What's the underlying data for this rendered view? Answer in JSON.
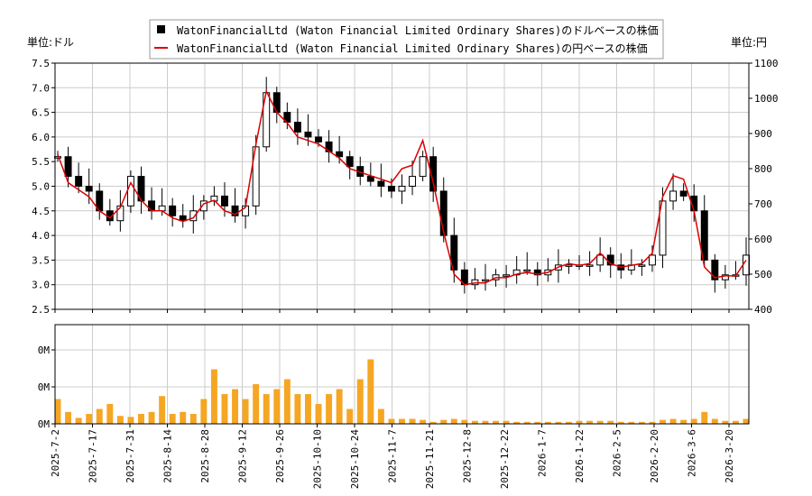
{
  "legend": {
    "usd_label": "WatonFinancialLtd (Waton Financial Limited Ordinary Shares)のドルベースの株価",
    "jpy_label": "WatonFinancialLtd (Waton Financial Limited Ordinary Shares)の円ベースの株価"
  },
  "units": {
    "left": "単位:ドル",
    "right": "単位:円"
  },
  "colors": {
    "candle": "#000000",
    "jpy_line": "#dd0000",
    "volume": "#f5a623",
    "grid": "#cccccc"
  },
  "chart_data": {
    "type": "candlestick+line+bar",
    "x_ticks": [
      "2025-7-2",
      "2025-7-17",
      "2025-7-31",
      "2025-8-14",
      "2025-8-28",
      "2025-9-12",
      "2025-9-26",
      "2025-10-10",
      "2025-10-24",
      "2025-11-7",
      "2025-11-21",
      "2025-12-8",
      "2025-12-22",
      "2026-1-7",
      "2026-1-22",
      "2026-2-5",
      "2026-2-20",
      "2026-3-6",
      "2026-3-20"
    ],
    "usd_axis": {
      "ylim": [
        2.5,
        7.5
      ],
      "ticks": [
        "2.5",
        "3.0",
        "3.5",
        "4.0",
        "4.5",
        "5.0",
        "5.5",
        "6.0",
        "6.5",
        "7.0",
        "7.5"
      ]
    },
    "jpy_axis": {
      "ylim": [
        400,
        1100
      ],
      "ticks": [
        "400",
        "500",
        "600",
        "700",
        "800",
        "900",
        "1000",
        "1100"
      ]
    },
    "volume_axis": {
      "ticks": [
        "0M",
        "0M",
        "0M"
      ]
    },
    "close_usd_weekly": [
      5.6,
      5.2,
      5.0,
      4.9,
      4.5,
      4.3,
      4.6,
      5.2,
      4.7,
      4.5,
      4.6,
      4.4,
      4.3,
      4.5,
      4.7,
      4.8,
      4.6,
      4.4,
      4.6,
      5.8,
      6.9,
      6.5,
      6.3,
      6.1,
      6.0,
      5.9,
      5.7,
      5.6,
      5.4,
      5.2,
      5.1,
      5.0,
      4.9,
      5.0,
      5.2,
      5.6,
      4.9,
      4.0,
      3.3,
      3.0,
      3.1,
      3.1,
      3.2,
      3.2,
      3.3,
      3.3,
      3.2,
      3.3,
      3.4,
      3.4,
      3.4,
      3.4,
      3.6,
      3.4,
      3.3,
      3.4,
      3.4,
      3.6,
      4.7,
      4.9,
      4.8,
      4.5,
      3.5,
      3.1,
      3.2,
      3.2,
      3.6
    ],
    "jpy_weekly": [
      840,
      760,
      740,
      720,
      680,
      660,
      690,
      760,
      710,
      680,
      680,
      660,
      650,
      660,
      700,
      710,
      680,
      670,
      690,
      870,
      1020,
      960,
      930,
      890,
      880,
      870,
      850,
      830,
      800,
      790,
      780,
      770,
      760,
      800,
      810,
      880,
      760,
      620,
      500,
      470,
      475,
      475,
      490,
      490,
      500,
      505,
      500,
      505,
      520,
      530,
      525,
      530,
      560,
      530,
      520,
      525,
      530,
      560,
      720,
      780,
      770,
      680,
      520,
      490,
      495,
      495,
      540
    ],
    "volume_weekly": [
      0.25,
      0.12,
      0.06,
      0.1,
      0.15,
      0.2,
      0.08,
      0.07,
      0.1,
      0.12,
      0.28,
      0.1,
      0.12,
      0.1,
      0.25,
      0.55,
      0.3,
      0.35,
      0.25,
      0.4,
      0.3,
      0.35,
      0.45,
      0.3,
      0.3,
      0.2,
      0.3,
      0.35,
      0.15,
      0.45,
      0.65,
      0.15,
      0.05,
      0.05,
      0.05,
      0.04,
      0.02,
      0.04,
      0.05,
      0.04,
      0.03,
      0.03,
      0.03,
      0.03,
      0.02,
      0.02,
      0.02,
      0.02,
      0.02,
      0.02,
      0.03,
      0.03,
      0.03,
      0.03,
      0.02,
      0.02,
      0.02,
      0.02,
      0.04,
      0.05,
      0.04,
      0.05,
      0.12,
      0.05,
      0.03,
      0.03,
      0.05
    ]
  }
}
